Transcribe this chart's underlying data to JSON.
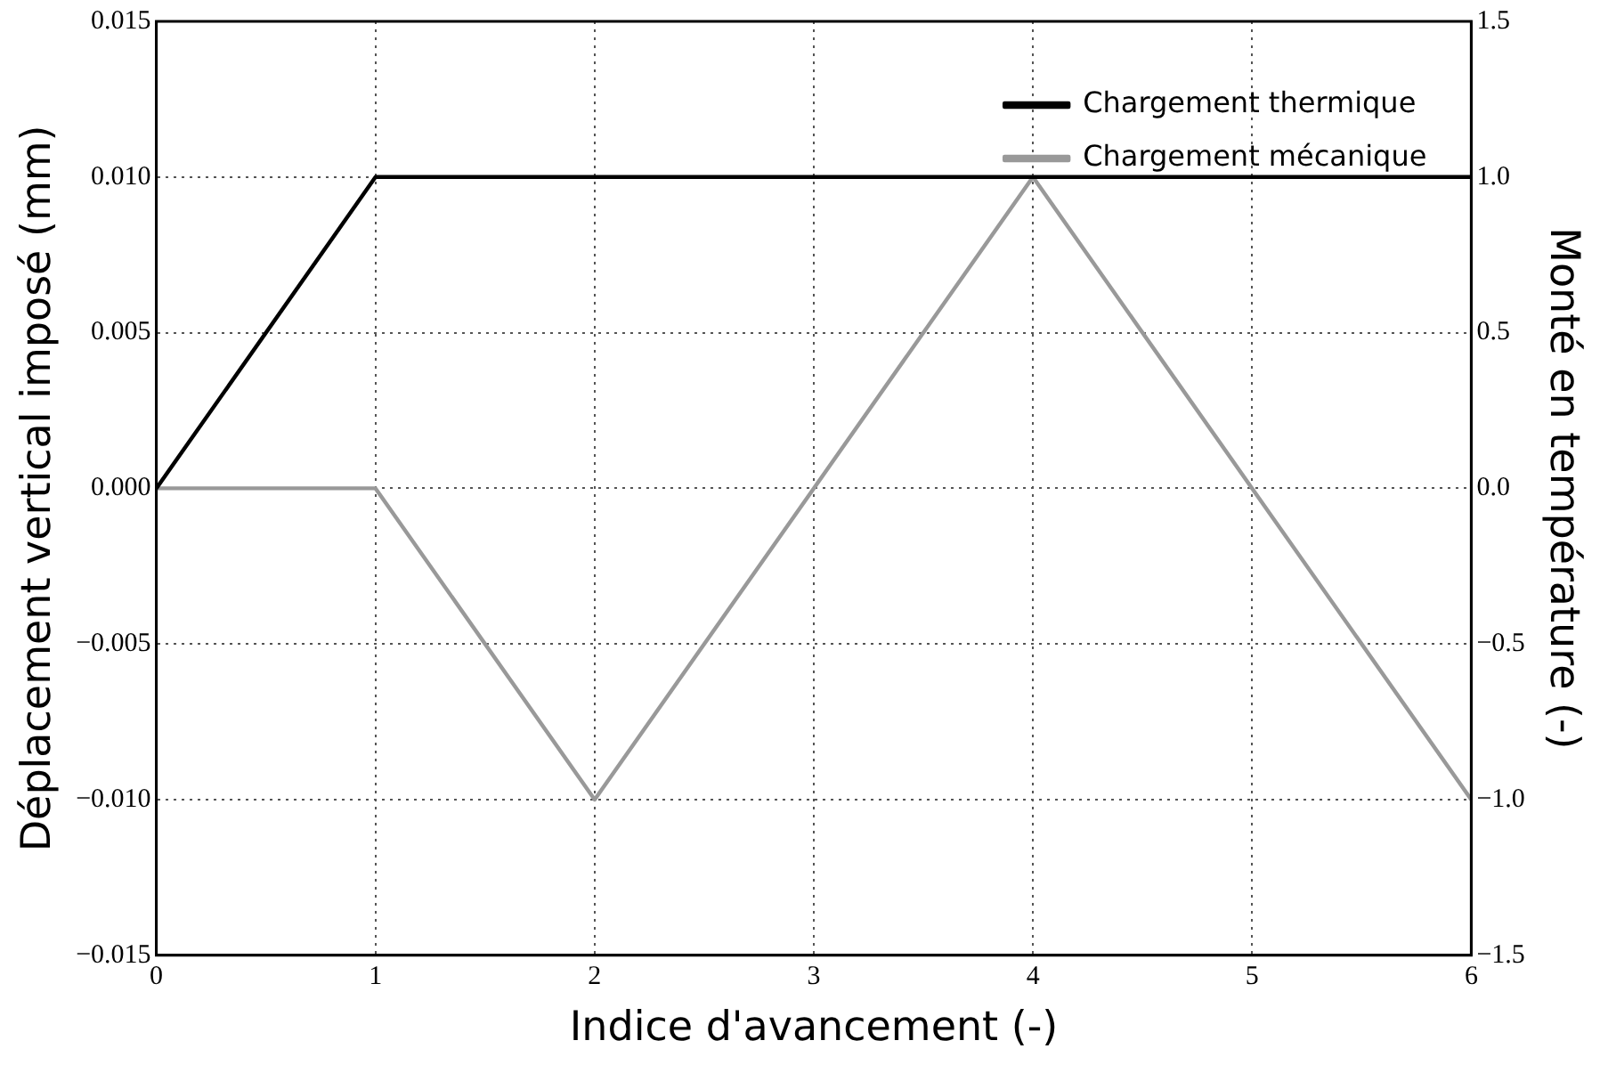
{
  "chart_data": {
    "type": "line",
    "xlabel": "Indice d'avancement (-)",
    "ylabel": "Déplacement vertical imposé (mm)",
    "y2label": "Monté en température (-)",
    "x": [
      0,
      1,
      2,
      3,
      4,
      5,
      6
    ],
    "series": [
      {
        "name": "Chargement thermique",
        "color": "#000000",
        "axis": "y2",
        "values": [
          0,
          1,
          1,
          1,
          1,
          1,
          1
        ]
      },
      {
        "name": "Chargement mécanique",
        "color": "#999999",
        "values": [
          0,
          0,
          -0.01,
          0,
          0.01,
          0,
          -0.01
        ]
      }
    ],
    "xlim": [
      0,
      6
    ],
    "xticks": [
      0,
      1,
      2,
      3,
      4,
      5,
      6
    ],
    "ylim": [
      -0.015,
      0.015
    ],
    "yticks": [
      {
        "value": -0.015,
        "label": "−0.015"
      },
      {
        "value": -0.01,
        "label": "−0.010"
      },
      {
        "value": -0.005,
        "label": "−0.005"
      },
      {
        "value": 0,
        "label": "0.000"
      },
      {
        "value": 0.005,
        "label": "0.005"
      },
      {
        "value": 0.01,
        "label": "0.010"
      },
      {
        "value": 0.015,
        "label": "0.015"
      }
    ],
    "y2lim": [
      -1.5,
      1.5
    ],
    "y2ticks": [
      {
        "value": -1.5,
        "label": "−1.5"
      },
      {
        "value": -1,
        "label": "−1.0"
      },
      {
        "value": -0.5,
        "label": "−0.5"
      },
      {
        "value": 0,
        "label": "0.0"
      },
      {
        "value": 0.5,
        "label": "0.5"
      },
      {
        "value": 1,
        "label": "1.0"
      },
      {
        "value": 1.5,
        "label": "1.5"
      }
    ],
    "grid": true,
    "legend": "top right",
    "line_style": "solid",
    "marker": "none"
  }
}
